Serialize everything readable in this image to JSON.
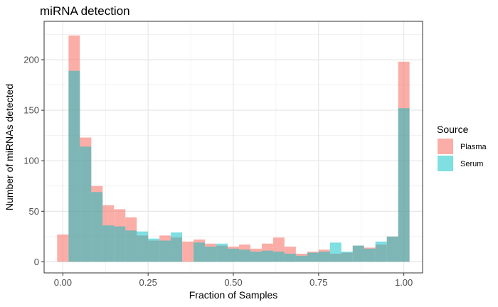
{
  "chart_data": {
    "type": "bar",
    "title": "miRNA detection",
    "xlabel": "Fraction of Samples",
    "ylabel": "Number of miRNAs detected",
    "xlim": [
      -0.055,
      1.055
    ],
    "ylim": [
      -11,
      238
    ],
    "xticks": [
      0.0,
      0.25,
      0.5,
      0.75,
      1.0
    ],
    "xtick_labels": [
      "0.00",
      "0.25",
      "0.50",
      "0.75",
      "1.00"
    ],
    "yticks": [
      0,
      50,
      100,
      150,
      200
    ],
    "ytick_labels": [
      "0",
      "50",
      "100",
      "150",
      "200"
    ],
    "grid": true,
    "bin_width": 0.0333,
    "bin_centers": [
      0.0,
      0.0333,
      0.0667,
      0.1,
      0.1333,
      0.1667,
      0.2,
      0.2333,
      0.2667,
      0.3,
      0.3333,
      0.3667,
      0.4,
      0.4333,
      0.4667,
      0.5,
      0.5333,
      0.5667,
      0.6,
      0.6333,
      0.6667,
      0.7,
      0.7333,
      0.7667,
      0.8,
      0.8333,
      0.8667,
      0.9,
      0.9333,
      0.9667,
      1.0
    ],
    "legend": {
      "title": "Source",
      "position": "right"
    },
    "series": [
      {
        "name": "Plasma",
        "color": "#F8766D",
        "opacity": 0.6,
        "values": [
          27,
          224,
          123,
          75,
          56,
          52,
          44,
          26,
          21,
          26,
          24,
          20,
          22,
          18,
          16,
          15,
          17,
          13,
          18,
          24,
          15,
          8,
          10,
          12,
          8,
          9,
          16,
          14,
          17,
          25,
          198
        ]
      },
      {
        "name": "Serum",
        "color": "#00BFC4",
        "opacity": 0.5,
        "values": [
          0,
          189,
          114,
          69,
          36,
          35,
          31,
          30,
          23,
          21,
          29,
          0,
          19,
          15,
          18,
          13,
          12,
          10,
          11,
          10,
          8,
          6,
          9,
          10,
          19,
          10,
          16,
          13,
          20,
          25,
          152
        ]
      }
    ]
  }
}
